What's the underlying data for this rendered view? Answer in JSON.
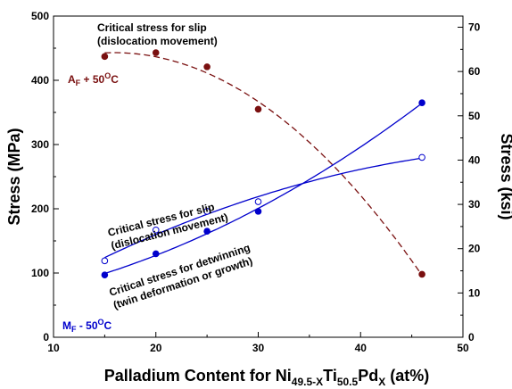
{
  "chart_data": {
    "type": "scatter",
    "x_axis": {
      "label_parts": [
        "Palladium Content for Ni",
        "49.5-X",
        "Ti",
        "50.5",
        "Pd",
        "X",
        " (at%)"
      ],
      "range": [
        10,
        50
      ],
      "ticks": [
        "10",
        "20",
        "30",
        "40",
        "50"
      ]
    },
    "y_axis_left": {
      "label": "Stress (MPa)",
      "range": [
        0,
        500
      ],
      "ticks": [
        "0",
        "100",
        "200",
        "300",
        "400",
        "500"
      ]
    },
    "y_axis_right": {
      "label": "Stress (ksi)",
      "range": [
        0,
        72.52
      ],
      "ticks": [
        "0",
        "10",
        "20",
        "30",
        "40",
        "50",
        "60",
        "70"
      ]
    },
    "grid": false,
    "series": [
      {
        "marker": "filled-circle",
        "line": "dashed",
        "color": "#7a1010",
        "x": [
          15,
          20,
          25,
          30,
          46
        ],
        "y": [
          437,
          443,
          421,
          355,
          98
        ]
      },
      {
        "marker": "open-circle",
        "line": "solid",
        "color": "#0000cc",
        "x": [
          15,
          20,
          25,
          30,
          46
        ],
        "y": [
          119,
          167,
          196,
          211,
          280
        ]
      },
      {
        "marker": "filled-circle",
        "line": "solid",
        "color": "#0000cc",
        "x": [
          15,
          20,
          25,
          30,
          46
        ],
        "y": [
          97,
          130,
          165,
          196,
          365
        ]
      }
    ],
    "annotations": {
      "austenite_slip": [
        "Critical stress for slip",
        "(dislocation movement)"
      ],
      "austenite_temp": {
        "base": "A",
        "sub": "F",
        "mid": " + 50",
        "sup": "O",
        "end": "C"
      },
      "martensite_slip": [
        "Critical stress for slip",
        "(dislocation movement)"
      ],
      "martensite_detwin": [
        "Critical stress for detwinning",
        "(twin deformation or growth)"
      ],
      "martensite_temp": {
        "base": "M",
        "sub": "F",
        "mid": " - 50",
        "sup": "O",
        "end": "C"
      }
    }
  }
}
